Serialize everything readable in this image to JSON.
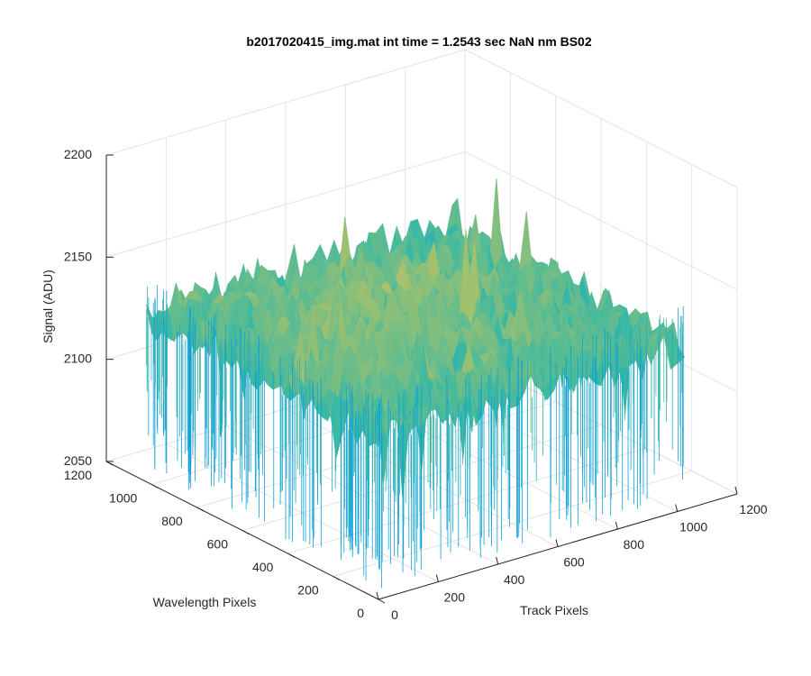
{
  "chart_data": {
    "type": "surface",
    "title": "b2017020415_img.mat int time = 1.2543 sec  NaN nm BS02",
    "xlabel": "Track Pixels",
    "ylabel": "Wavelength Pixels",
    "zlabel": "Signal (ADU)",
    "xlim": [
      0,
      1200
    ],
    "ylim": [
      0,
      1200
    ],
    "zlim": [
      2050,
      2200
    ],
    "xticks": [
      0,
      200,
      400,
      600,
      800,
      1000,
      1200
    ],
    "yticks": [
      0,
      200,
      400,
      600,
      800,
      1000,
      1200
    ],
    "zticks": [
      2050,
      2100,
      2150,
      2200
    ],
    "grid": true,
    "colormap": "parula",
    "surface_summary": {
      "x_extent": [
        0,
        1024
      ],
      "y_extent": [
        0,
        1024
      ],
      "mean_signal": 2130,
      "min_signal": 2055,
      "max_signal": 2195
    },
    "colors": {
      "low": "#0d9fd8",
      "mid": "#3cb9a2",
      "high": "#e8c64a",
      "grid": "#e3e3e3",
      "axis": "#262626"
    }
  }
}
